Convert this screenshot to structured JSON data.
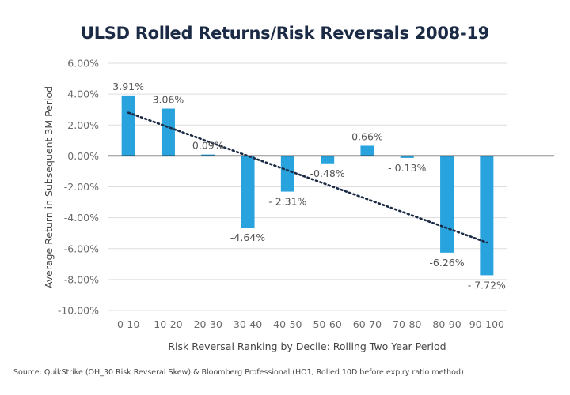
{
  "chart_data": {
    "type": "bar",
    "title": "ULSD Rolled Returns/Risk Reversals 2008-19",
    "xlabel": "Risk Reversal Ranking by Decile: Rolling Two Year Period",
    "ylabel": "Average Return in Subsequent 3M Period",
    "categories": [
      "0-10",
      "10-20",
      "20-30",
      "30-40",
      "40-50",
      "50-60",
      "60-70",
      "70-80",
      "80-90",
      "90-100"
    ],
    "values": [
      3.91,
      3.06,
      0.09,
      -4.64,
      -2.31,
      -0.48,
      0.66,
      -0.13,
      -6.26,
      -7.72
    ],
    "data_labels": [
      "3.91%",
      "3.06%",
      "0.09%",
      "-4.64%",
      "- 2.31%",
      "-0.48%",
      "0.66%",
      "- 0.13%",
      "-6.26%",
      "- 7.72%"
    ],
    "ylim": [
      -10,
      6
    ],
    "yticks": [
      6,
      4,
      2,
      0,
      -2,
      -4,
      -6,
      -8,
      -10
    ],
    "ytick_labels": [
      "6.00%",
      "4.00%",
      "2.00%",
      "0.00%",
      "-2.00%",
      "-4.00%",
      "-6.00%",
      "-8.00%",
      "-10.00%"
    ],
    "grid": true,
    "trendline": {
      "type": "linear",
      "style": "dotted",
      "start": 2.8,
      "end": -5.6
    },
    "colors": {
      "bar": "#29a3dd",
      "trendline": "#1c2b45",
      "zero_line": "#222222",
      "grid": "#dddddd",
      "title": "#1c2b45"
    }
  },
  "source_note": "Source: QuikStrike (OH_30 Risk Revseral Skew) & Bloomberg Professional (HO1, Rolled 10D before expiry ratio method)"
}
